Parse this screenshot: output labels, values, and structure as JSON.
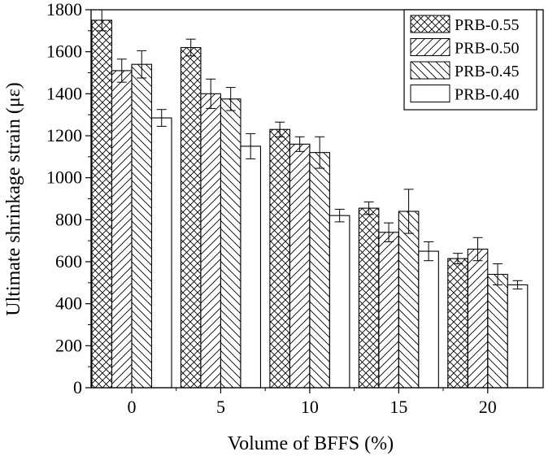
{
  "chart_data": {
    "type": "bar",
    "title": "",
    "xlabel": "Volume of BFFS (%)",
    "ylabel": "Ultimate shrinkage strain (με)",
    "categories": [
      "0",
      "5",
      "10",
      "15",
      "20"
    ],
    "ylim": [
      0,
      1800
    ],
    "yticks": [
      0,
      200,
      400,
      600,
      800,
      1000,
      1200,
      1400,
      1600,
      1800
    ],
    "grid": false,
    "legend_position": "top-right",
    "series": [
      {
        "name": "PRB-0.55",
        "pattern": "crosshatch",
        "values": [
          1750,
          1620,
          1230,
          855,
          615
        ],
        "errors": [
          50,
          40,
          35,
          30,
          25
        ]
      },
      {
        "name": "PRB-0.50",
        "pattern": "diagonal-forward",
        "values": [
          1510,
          1400,
          1160,
          740,
          660
        ],
        "errors": [
          55,
          70,
          35,
          45,
          55
        ]
      },
      {
        "name": "PRB-0.45",
        "pattern": "diagonal-backward",
        "values": [
          1540,
          1375,
          1120,
          840,
          540
        ],
        "errors": [
          65,
          55,
          75,
          105,
          50
        ]
      },
      {
        "name": "PRB-0.40",
        "pattern": "none",
        "values": [
          1285,
          1150,
          820,
          650,
          490
        ],
        "errors": [
          40,
          60,
          30,
          45,
          20
        ]
      }
    ]
  }
}
